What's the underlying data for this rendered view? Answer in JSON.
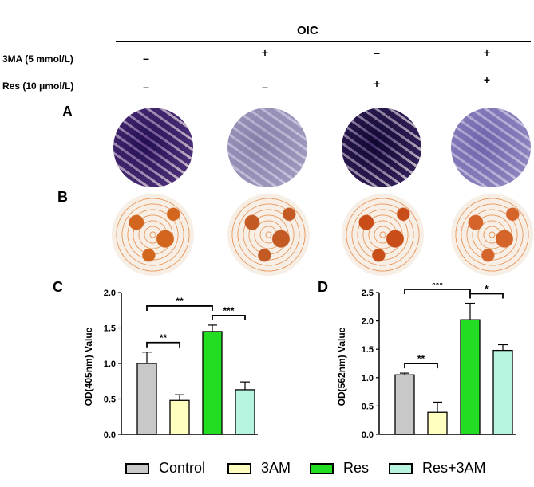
{
  "header": {
    "group_label": "OIC",
    "row1_label": "3MA (5 mmol/L)",
    "row2_label": "Res (10 μmol/L)",
    "row1_signs": [
      "–",
      "+",
      "–",
      "+"
    ],
    "row2_signs": [
      "–",
      "–",
      "+",
      "+"
    ]
  },
  "panels": {
    "A": "A",
    "B": "B",
    "C": "C",
    "D": "D"
  },
  "wells": {
    "A_colors": [
      "#5d3d8f",
      "#b8b3cf",
      "#3f2a6e",
      "#a79ed0"
    ],
    "B_colors": [
      "#d2661f",
      "#c45a23",
      "#c84d18",
      "#d4642a"
    ]
  },
  "chart_data": [
    {
      "type": "bar",
      "panel": "C",
      "ylabel": "OD(405nm)  Value",
      "ylim": [
        0,
        2.0
      ],
      "yticks": [
        "0.0",
        "0.5",
        "1.0",
        "1.5",
        "2.0"
      ],
      "categories": [
        "Control",
        "3AM",
        "Res",
        "Res+3AM"
      ],
      "values": [
        1.0,
        0.48,
        1.45,
        0.63
      ],
      "errors": [
        0.16,
        0.08,
        0.09,
        0.11
      ],
      "significance": [
        {
          "from": 0,
          "to": 1,
          "label": "**"
        },
        {
          "from": 0,
          "to": 2,
          "label": "**"
        },
        {
          "from": 2,
          "to": 3,
          "label": "***"
        }
      ]
    },
    {
      "type": "bar",
      "panel": "D",
      "ylabel": "OD(562nm)  Value",
      "ylim": [
        0,
        2.5
      ],
      "yticks": [
        "0.0",
        "0.5",
        "1.0",
        "1.5",
        "2.0",
        "2.5"
      ],
      "categories": [
        "Control",
        "3AM",
        "Res",
        "Res+3AM"
      ],
      "values": [
        1.05,
        0.39,
        2.02,
        1.48
      ],
      "errors": [
        0.03,
        0.18,
        0.29,
        0.1
      ],
      "significance": [
        {
          "from": 0,
          "to": 1,
          "label": "**"
        },
        {
          "from": 0,
          "to": 2,
          "label": "***"
        },
        {
          "from": 2,
          "to": 3,
          "label": "*"
        }
      ]
    }
  ],
  "legend": [
    {
      "label": "Control",
      "color": "#c8c8c8"
    },
    {
      "label": "3AM",
      "color": "#ffffc0"
    },
    {
      "label": "Res",
      "color": "#22dd22"
    },
    {
      "label": "Res+3AM",
      "color": "#b8f5e0"
    }
  ]
}
